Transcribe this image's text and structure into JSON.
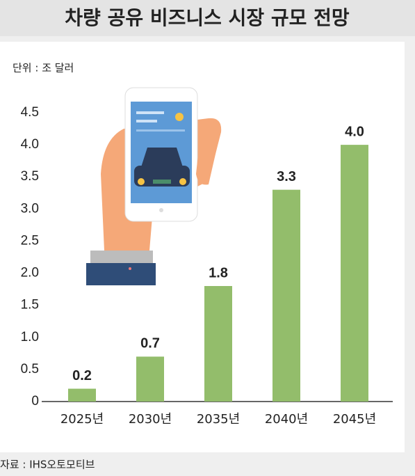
{
  "chart_data": {
    "type": "bar",
    "title": "차량 공유 비즈니스 시장 규모 전망",
    "unit": "단위 : 조 달러",
    "source": "자료 : IHS오토모티브",
    "categories": [
      "2025년",
      "2030년",
      "2035년",
      "2040년",
      "2045년"
    ],
    "values": [
      0.2,
      0.7,
      1.8,
      3.3,
      4.0
    ],
    "value_labels": [
      "0.2",
      "0.7",
      "1.8",
      "3.3",
      "4.0"
    ],
    "color": "#93bd6b",
    "ylim": [
      0,
      4.5
    ],
    "yticks": [
      0,
      0.5,
      {
        "value": 1,
        "label": "1.0"
      },
      1.5,
      {
        "value": 2,
        "label": "2.0"
      },
      2.5,
      {
        "value": 3,
        "label": "3.0"
      },
      3.5,
      {
        "value": 4,
        "label": "4.0"
      },
      4.5
    ],
    "grid": false
  }
}
